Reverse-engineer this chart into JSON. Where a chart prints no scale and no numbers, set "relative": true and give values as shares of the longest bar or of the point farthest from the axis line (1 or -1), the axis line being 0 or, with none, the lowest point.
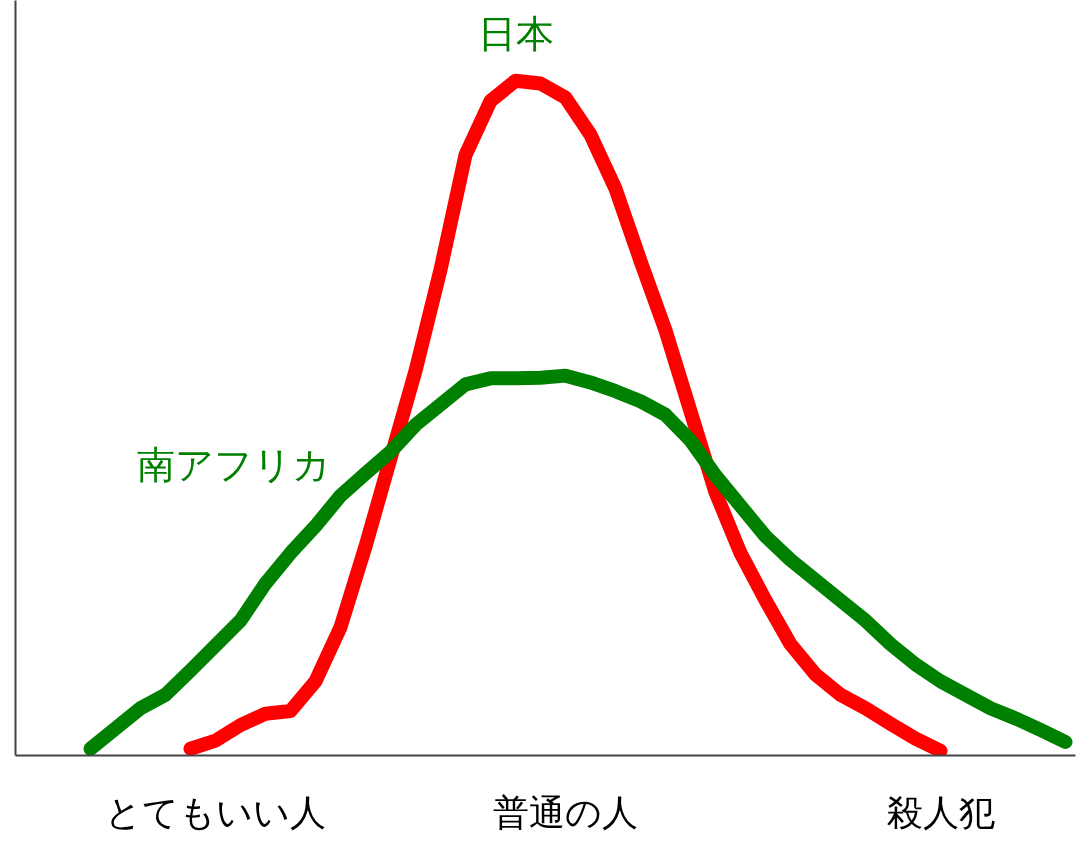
{
  "chart_data": {
    "type": "line",
    "relative": true,
    "grid": false,
    "line_style": "solid",
    "marker": "none",
    "categories": [
      null,
      null,
      null,
      null,
      null,
      null,
      "とてもいい人",
      null,
      null,
      null,
      null,
      null,
      null,
      null,
      null,
      null,
      null,
      null,
      null,
      null,
      "普通の人",
      null,
      null,
      null,
      null,
      null,
      null,
      null,
      null,
      null,
      null,
      null,
      null,
      null,
      null,
      "殺人犯",
      null,
      null,
      null,
      null,
      null
    ],
    "series": [
      {
        "color": "#ff0000",
        "values": [
          null,
          null,
          null,
          null,
          null,
          0.01,
          0.022,
          0.045,
          0.062,
          0.066,
          0.11,
          0.19,
          0.31,
          0.44,
          0.57,
          0.72,
          0.89,
          0.97,
          1.0,
          0.996,
          0.975,
          0.92,
          0.84,
          0.733,
          0.63,
          0.51,
          0.39,
          0.3,
          0.23,
          0.165,
          0.12,
          0.09,
          0.07,
          0.047,
          0.025,
          0.007,
          null,
          null,
          null,
          null,
          null
        ]
      },
      {
        "color": "#008000",
        "values": [
          null,
          0.01,
          0.04,
          0.07,
          0.09,
          0.126,
          0.163,
          0.2,
          0.255,
          0.3,
          0.34,
          0.385,
          0.418,
          0.45,
          0.49,
          0.52,
          0.55,
          0.559,
          0.559,
          0.56,
          0.563,
          0.553,
          0.54,
          0.525,
          0.505,
          0.467,
          0.415,
          0.37,
          0.325,
          0.29,
          0.26,
          0.23,
          0.2,
          0.165,
          0.135,
          0.11,
          0.09,
          0.07,
          0.055,
          0.038,
          0.02
        ]
      }
    ],
    "annotations": [
      "日本",
      "南アフリカ"
    ]
  }
}
